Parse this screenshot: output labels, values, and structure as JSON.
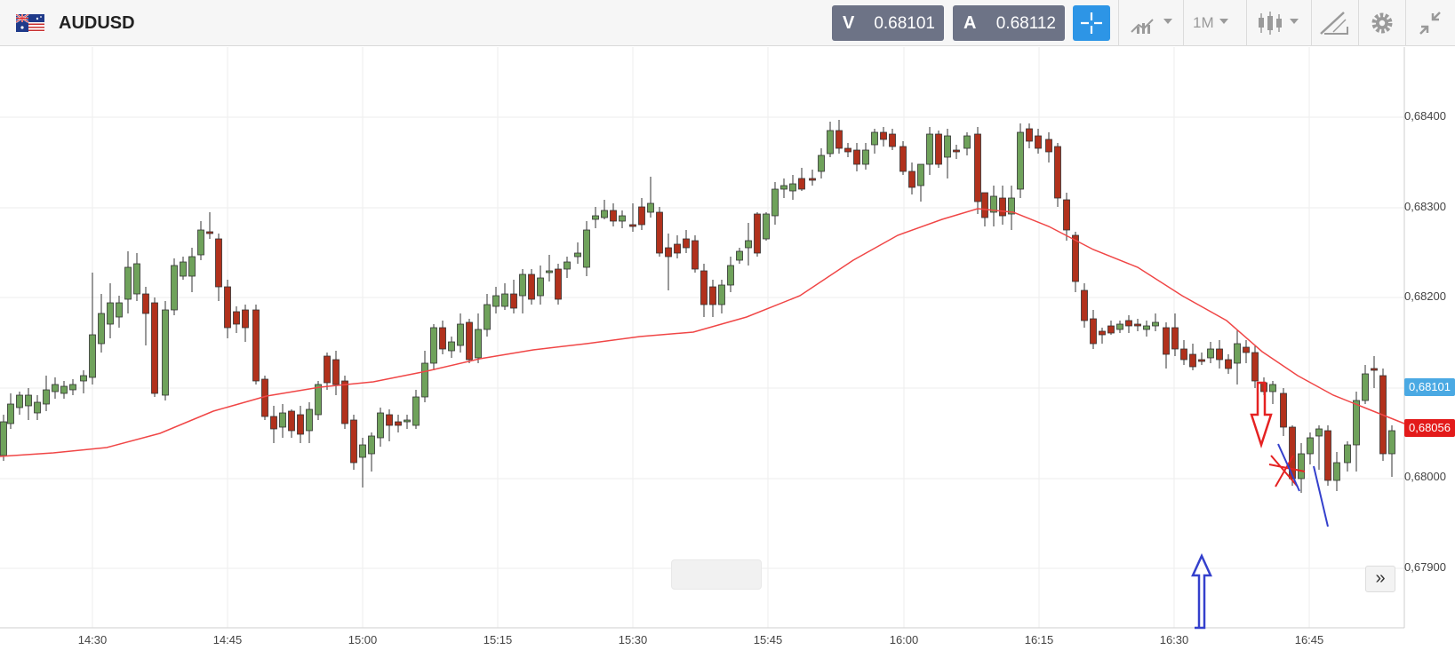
{
  "header": {
    "symbol": "AUDUSD",
    "sell": {
      "label": "V",
      "price": "0.68101"
    },
    "buy": {
      "label": "A",
      "price": "0.68112"
    },
    "timeframe": "1M",
    "icons": {
      "flag": "australia-flag-icon",
      "crosshair": "crosshair-icon",
      "indicators": "indicators-icon",
      "chart_type": "candlestick-icon",
      "drawing": "drawing-tools-icon",
      "settings": "gear-icon",
      "collapse": "collapse-icon"
    }
  },
  "chart": {
    "price_labels": [
      "0,68400",
      "0,68300",
      "0,68200",
      "0,68000",
      "0,67900"
    ],
    "time_labels": [
      "14:30",
      "14:45",
      "15:00",
      "15:15",
      "15:30",
      "15:45",
      "16:00",
      "16:15",
      "16:30",
      "16:45"
    ],
    "bid_tag": "0,68101",
    "last_tag": "0,68056",
    "scroll_button": "»",
    "colors": {
      "bull": "#6fa25b",
      "bear": "#b1311c",
      "moving_average": "#f04646",
      "bid_tag": "#4aa9e3",
      "last_tag": "#e31a1a",
      "annotation_blue": "#3440cc",
      "annotation_red": "#e52222"
    }
  }
}
